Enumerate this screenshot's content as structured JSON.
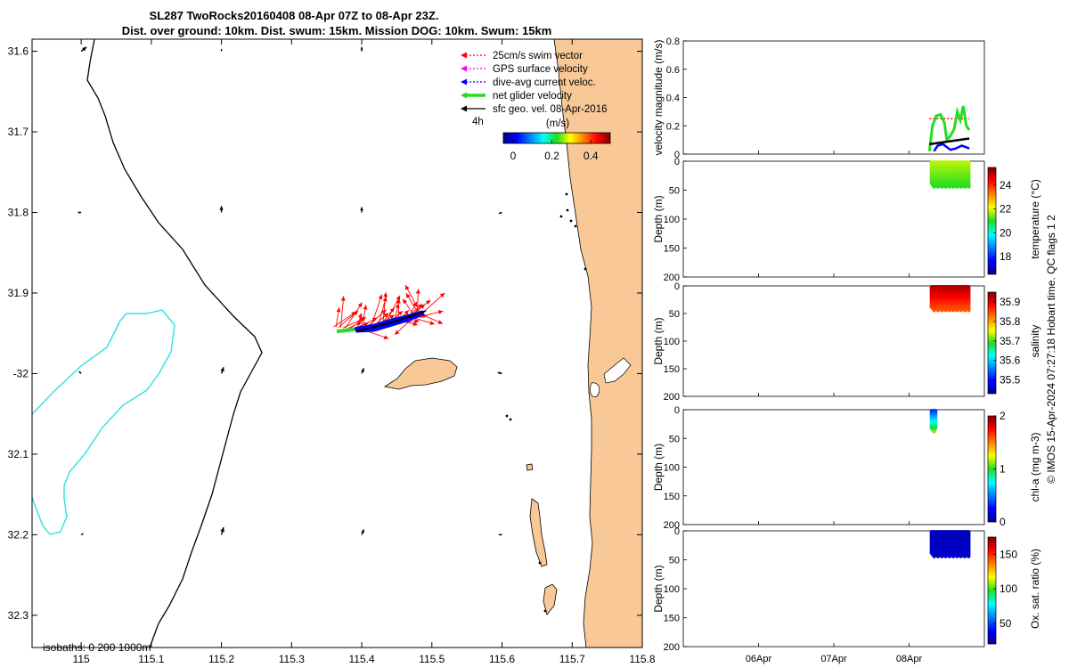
{
  "title": {
    "line1": "SL287 TwoRocks20160408 08-Apr 07Z to 08-Apr 23Z.",
    "line2": "Dist. over ground: 10km. Dist. swum: 15km. Mission DOG: 10km. Swum: 15km"
  },
  "colors": {
    "land": "#f8c896",
    "isobath_deep": "#30e0e0",
    "coast_line": "#000000",
    "swim_vector": "#ff0000",
    "gps_velocity": "#ff00ff",
    "dive_avg": "#0000ff",
    "net_velocity": "#22dd22",
    "sfc_geo": "#000000"
  },
  "map": {
    "xlim": [
      114.93,
      115.8
    ],
    "ylim": [
      -32.34,
      -31.585
    ],
    "xticks": [
      {
        "v": 115,
        "label": "115"
      },
      {
        "v": 115.1,
        "label": "115.1"
      },
      {
        "v": 115.2,
        "label": "115.2"
      },
      {
        "v": 115.3,
        "label": "115.3"
      },
      {
        "v": 115.4,
        "label": "115.4"
      },
      {
        "v": 115.5,
        "label": "115.5"
      },
      {
        "v": 115.6,
        "label": "115.6"
      },
      {
        "v": 115.7,
        "label": "115.7"
      },
      {
        "v": 115.8,
        "label": "115.8"
      }
    ],
    "yticks": [
      {
        "v": -31.6,
        "label": "31.6"
      },
      {
        "v": -31.7,
        "label": "31.7"
      },
      {
        "v": -31.8,
        "label": "31.8"
      },
      {
        "v": -31.9,
        "label": "31.9"
      },
      {
        "v": -32.0,
        "label": "-32"
      },
      {
        "v": -32.1,
        "label": "32.1"
      },
      {
        "v": -32.2,
        "label": "32.2"
      },
      {
        "v": -32.3,
        "label": "32.3"
      }
    ],
    "legend": {
      "items": [
        {
          "key": "swim",
          "label": "25cm/s swim vector"
        },
        {
          "key": "gps",
          "label": "GPS surface velocity"
        },
        {
          "key": "dive",
          "label": "dive-avg current veloc."
        },
        {
          "key": "net",
          "label": "net glider velocity"
        },
        {
          "key": "sfc",
          "label": "sfc geo. vel. 08-Apr-2016"
        }
      ],
      "time_label": "4h",
      "units_label": "(m/s)"
    },
    "colorbar": {
      "range": [
        -0.05,
        0.5
      ],
      "ticks": [
        {
          "v": 0,
          "label": "0"
        },
        {
          "v": 0.2,
          "label": "0.2"
        },
        {
          "v": 0.4,
          "label": "0.4"
        }
      ]
    },
    "isobaths_text": "isobaths: 0   200  1000m",
    "geo_arrows": [
      {
        "lon": 115.0,
        "lat": -31.6,
        "u": 0.05,
        "v": 0.04
      },
      {
        "lon": 115.2,
        "lat": -31.6,
        "u": 0.0,
        "v": 0.02
      },
      {
        "lon": 115.4,
        "lat": -31.6,
        "u": 0.0,
        "v": 0.04
      },
      {
        "lon": 115.0,
        "lat": -31.8,
        "u": -0.03,
        "v": 0.0
      },
      {
        "lon": 115.2,
        "lat": -31.8,
        "u": 0.0,
        "v": 0.06
      },
      {
        "lon": 115.4,
        "lat": -31.8,
        "u": 0.0,
        "v": 0.05
      },
      {
        "lon": 115.6,
        "lat": -31.8,
        "u": -0.03,
        "v": -0.01
      },
      {
        "lon": 115.0,
        "lat": -32.0,
        "u": -0.02,
        "v": 0.02
      },
      {
        "lon": 115.2,
        "lat": -32.0,
        "u": 0.02,
        "v": 0.06
      },
      {
        "lon": 115.4,
        "lat": -32.0,
        "u": 0.02,
        "v": 0.05
      },
      {
        "lon": 115.6,
        "lat": -32.0,
        "u": -0.04,
        "v": 0.01
      },
      {
        "lon": 115.0,
        "lat": -32.2,
        "u": 0.02,
        "v": 0.01
      },
      {
        "lon": 115.2,
        "lat": -32.2,
        "u": 0.02,
        "v": 0.07
      },
      {
        "lon": 115.4,
        "lat": -32.2,
        "u": 0.02,
        "v": 0.05
      },
      {
        "lon": 115.6,
        "lat": -32.2,
        "u": -0.03,
        "v": 0.0
      }
    ],
    "track": [
      {
        "lon": 115.36,
        "lat": -31.942
      },
      {
        "lon": 115.39,
        "lat": -31.945
      },
      {
        "lon": 115.42,
        "lat": -31.941
      },
      {
        "lon": 115.45,
        "lat": -31.936
      },
      {
        "lon": 115.47,
        "lat": -31.932
      },
      {
        "lon": 115.49,
        "lat": -31.927
      }
    ]
  },
  "panels": {
    "x_range_days": [
      0,
      4
    ],
    "x_ticks": [
      {
        "d": 1,
        "label": "06Apr"
      },
      {
        "d": 2,
        "label": "07Apr"
      },
      {
        "d": 3,
        "label": "08Apr"
      }
    ],
    "velocity": {
      "ylabel": "velocity magnitude (m/s)",
      "ylim": [
        0,
        0.8
      ],
      "yticks": [
        {
          "v": 0,
          "label": "0"
        },
        {
          "v": 0.2,
          "label": "0.2"
        },
        {
          "v": 0.4,
          "label": "0.4"
        },
        {
          "v": 0.6,
          "label": "0.6"
        },
        {
          "v": 0.8,
          "label": "0.8"
        }
      ],
      "net_series": [
        [
          3.27,
          0.02
        ],
        [
          3.31,
          0.2
        ],
        [
          3.36,
          0.27
        ],
        [
          3.42,
          0.28
        ],
        [
          3.47,
          0.22
        ],
        [
          3.5,
          0.1
        ],
        [
          3.55,
          0.13
        ],
        [
          3.6,
          0.18
        ],
        [
          3.64,
          0.3
        ],
        [
          3.68,
          0.24
        ],
        [
          3.72,
          0.34
        ],
        [
          3.76,
          0.2
        ],
        [
          3.8,
          0.17
        ]
      ],
      "dive_series": [
        [
          3.33,
          0.02
        ],
        [
          3.38,
          0.06
        ],
        [
          3.45,
          0.07
        ],
        [
          3.55,
          0.03
        ],
        [
          3.62,
          0.04
        ],
        [
          3.7,
          0.06
        ],
        [
          3.8,
          0.04
        ]
      ],
      "sfc_series": [
        [
          3.27,
          0.07
        ],
        [
          3.8,
          0.11
        ]
      ],
      "swim_series": [
        [
          3.27,
          0.25
        ],
        [
          3.8,
          0.25
        ]
      ]
    },
    "depth_panels": [
      {
        "key": "temperature",
        "ylabel": "Depth (m)",
        "cblabel": "temperature (°C)",
        "cbrange": [
          16.5,
          25.5
        ],
        "cbticks": [
          {
            "v": 18,
            "label": "18"
          },
          {
            "v": 20,
            "label": "20"
          },
          {
            "v": 22,
            "label": "22"
          },
          {
            "v": 24,
            "label": "24"
          }
        ],
        "profile_start": 3.3,
        "profile_end": 3.79,
        "max_depth": 45,
        "value_top": 21.8,
        "value_bottom": 21.0
      },
      {
        "key": "salinity",
        "ylabel": "Depth (m)",
        "cblabel": "salinity",
        "cbrange": [
          35.43,
          35.95
        ],
        "cbticks": [
          {
            "v": 35.5,
            "label": "35.5"
          },
          {
            "v": 35.6,
            "label": "35.6"
          },
          {
            "v": 35.7,
            "label": "35.7"
          },
          {
            "v": 35.8,
            "label": "35.8"
          },
          {
            "v": 35.9,
            "label": "35.9"
          }
        ],
        "profile_start": 3.3,
        "profile_end": 3.79,
        "max_depth": 45,
        "value_top": 35.93,
        "value_bottom": 35.84
      },
      {
        "key": "chla",
        "ylabel": "Depth (m)",
        "cblabel": "chl-a (mg m-3)",
        "cbrange": [
          0,
          2
        ],
        "cbticks": [
          {
            "v": 0,
            "label": "0"
          },
          {
            "v": 1,
            "label": "1"
          },
          {
            "v": 2,
            "label": "2"
          }
        ],
        "profile_start": 3.3,
        "profile_end": 3.35,
        "max_depth": 38,
        "value_top": 0.3,
        "value_bottom": 1.1
      },
      {
        "key": "oxygen",
        "ylabel": "Depth (m)",
        "cblabel": "Ox. sat. ratio (%)",
        "cbrange": [
          20,
          175
        ],
        "cbticks": [
          {
            "v": 50,
            "label": "50"
          },
          {
            "v": 100,
            "label": "100"
          },
          {
            "v": 150,
            "label": "150"
          }
        ],
        "profile_start": 3.3,
        "profile_end": 3.79,
        "max_depth": 45,
        "value_top": 28,
        "value_bottom": 30
      }
    ],
    "depth_ticks": [
      {
        "v": 0,
        "label": "0"
      },
      {
        "v": 50,
        "label": "50"
      },
      {
        "v": 100,
        "label": "100"
      },
      {
        "v": 150,
        "label": "150"
      },
      {
        "v": 200,
        "label": "200"
      }
    ]
  },
  "footer_text": "© IMOS 15-Apr-2024 07:27:18 Hobart time. QC flags 1  2"
}
